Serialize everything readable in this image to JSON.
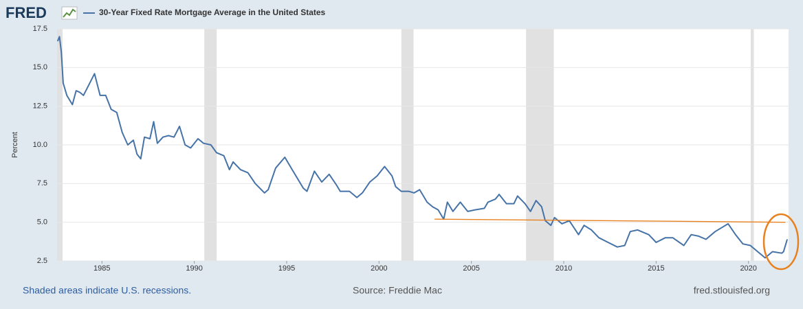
{
  "chart_data": {
    "type": "line",
    "logo": "FRED",
    "title": "30-Year Fixed Rate Mortgage Average in the United States",
    "y_label": "Percent",
    "note": "Shaded areas indicate U.S. recessions.",
    "source": "Source: Freddie Mac",
    "url": "fred.stlouisfed.org",
    "xlim": [
      1982.57,
      2022.17
    ],
    "xticks": [
      1985,
      1990,
      1995,
      2000,
      2005,
      2010,
      2015,
      2020
    ],
    "ylim": [
      2.5,
      17.5
    ],
    "yticks": [
      2.5,
      {
        "value": 5,
        "label": "5.0"
      },
      7.5,
      {
        "value": 10,
        "label": "10.0"
      },
      12.5,
      {
        "value": 15,
        "label": "15.0"
      },
      17.5
    ],
    "grid": true,
    "recessions": [
      [
        1982.57,
        1982.87
      ],
      [
        1990.54,
        1991.21
      ],
      [
        2001.21,
        2001.87
      ],
      [
        2007.96,
        2009.46
      ],
      [
        2020.12,
        2020.29
      ]
    ],
    "recession_color": "#e1e1e1",
    "reference_line": {
      "x": [
        2003.0,
        2022.0
      ],
      "values": [
        5.2,
        5.0
      ],
      "color": "#e8801e"
    },
    "series": [
      {
        "name": "30-Year Fixed Rate Mortgage Average in the United States",
        "color": "#4572a7",
        "x": [
          1982.6,
          1982.7,
          1982.8,
          1982.9,
          1983.1,
          1983.4,
          1983.6,
          1983.8,
          1984.0,
          1984.3,
          1984.6,
          1984.9,
          1985.2,
          1985.5,
          1985.8,
          1986.1,
          1986.4,
          1986.7,
          1986.9,
          1987.1,
          1987.3,
          1987.6,
          1987.8,
          1988.0,
          1988.3,
          1988.6,
          1988.9,
          1989.2,
          1989.5,
          1989.8,
          1990.2,
          1990.5,
          1990.9,
          1991.2,
          1991.6,
          1991.9,
          1992.1,
          1992.5,
          1992.9,
          1993.3,
          1993.8,
          1994.0,
          1994.4,
          1994.9,
          1995.3,
          1995.7,
          1995.9,
          1996.1,
          1996.5,
          1996.9,
          1997.3,
          1997.7,
          1997.9,
          1998.4,
          1998.8,
          1999.1,
          1999.5,
          1999.9,
          2000.3,
          2000.7,
          2000.9,
          2001.2,
          2001.6,
          2001.9,
          2002.2,
          2002.6,
          2002.9,
          2003.2,
          2003.5,
          2003.7,
          2004.0,
          2004.4,
          2004.8,
          2005.2,
          2005.7,
          2005.9,
          2006.3,
          2006.5,
          2006.9,
          2007.3,
          2007.5,
          2007.9,
          2008.2,
          2008.5,
          2008.8,
          2009.0,
          2009.3,
          2009.5,
          2009.9,
          2010.3,
          2010.8,
          2011.1,
          2011.5,
          2011.9,
          2012.4,
          2012.9,
          2013.3,
          2013.6,
          2014.0,
          2014.6,
          2015.0,
          2015.5,
          2015.9,
          2016.5,
          2016.9,
          2017.3,
          2017.7,
          2018.2,
          2018.9,
          2019.3,
          2019.7,
          2020.1,
          2020.5,
          2020.9,
          2021.3,
          2021.8,
          2021.9,
          2022.1
        ],
        "values": [
          16.7,
          17.0,
          16.0,
          14.0,
          13.2,
          12.6,
          13.5,
          13.4,
          13.2,
          13.9,
          14.6,
          13.2,
          13.2,
          12.3,
          12.1,
          10.8,
          10.0,
          10.3,
          9.4,
          9.1,
          10.5,
          10.4,
          11.5,
          10.1,
          10.5,
          10.6,
          10.5,
          11.2,
          10.0,
          9.8,
          10.4,
          10.1,
          10.0,
          9.5,
          9.3,
          8.4,
          8.9,
          8.4,
          8.2,
          7.5,
          6.9,
          7.1,
          8.5,
          9.2,
          8.4,
          7.6,
          7.2,
          7.0,
          8.3,
          7.6,
          8.1,
          7.4,
          7.0,
          7.0,
          6.6,
          6.9,
          7.6,
          8.0,
          8.6,
          8.0,
          7.3,
          7.0,
          7.0,
          6.9,
          7.1,
          6.3,
          6.0,
          5.8,
          5.2,
          6.3,
          5.7,
          6.3,
          5.7,
          5.8,
          5.9,
          6.3,
          6.5,
          6.8,
          6.2,
          6.2,
          6.7,
          6.2,
          5.7,
          6.4,
          6.0,
          5.1,
          4.8,
          5.3,
          4.9,
          5.1,
          4.2,
          4.8,
          4.5,
          4.0,
          3.7,
          3.4,
          3.5,
          4.4,
          4.5,
          4.2,
          3.7,
          4.0,
          4.0,
          3.5,
          4.2,
          4.1,
          3.9,
          4.4,
          4.9,
          4.2,
          3.6,
          3.5,
          3.1,
          2.7,
          3.1,
          3.0,
          3.1,
          3.9
        ]
      }
    ]
  }
}
